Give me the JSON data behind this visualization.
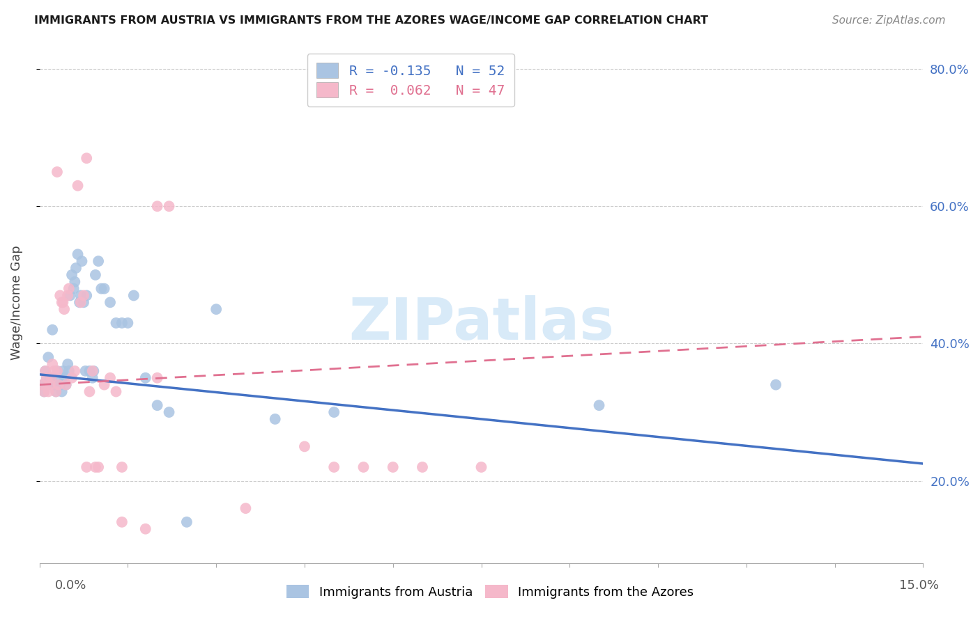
{
  "title": "IMMIGRANTS FROM AUSTRIA VS IMMIGRANTS FROM THE AZORES WAGE/INCOME GAP CORRELATION CHART",
  "source": "Source: ZipAtlas.com",
  "ylabel": "Wage/Income Gap",
  "x_min": 0.0,
  "x_max": 15.0,
  "y_min": 8.0,
  "y_max": 84.0,
  "y_ticks": [
    20.0,
    40.0,
    60.0,
    80.0
  ],
  "austria_color": "#aac4e2",
  "azores_color": "#f5b8ca",
  "austria_line_color": "#4472c4",
  "azores_line_color": "#e07090",
  "watermark_color": "#d8eaf8",
  "watermark_text": "ZIPatlas",
  "legend_austria_label": "R = -0.135   N = 52",
  "legend_azores_label": "R =  0.062   N = 47",
  "austria_trend_x0": 0.0,
  "austria_trend_y0": 35.5,
  "austria_trend_x1": 15.0,
  "austria_trend_y1": 22.5,
  "azores_trend_x0": 0.0,
  "azores_trend_y0": 34.0,
  "azores_trend_x1": 15.0,
  "azores_trend_y1": 41.0,
  "austria_x": [
    0.05,
    0.08,
    0.1,
    0.12,
    0.15,
    0.18,
    0.2,
    0.22,
    0.25,
    0.28,
    0.3,
    0.32,
    0.35,
    0.38,
    0.4,
    0.42,
    0.45,
    0.48,
    0.5,
    0.52,
    0.55,
    0.58,
    0.6,
    0.62,
    0.65,
    0.68,
    0.7,
    0.72,
    0.75,
    0.78,
    0.8,
    0.85,
    0.9,
    0.92,
    0.95,
    1.0,
    1.05,
    1.1,
    1.2,
    1.3,
    1.4,
    1.5,
    1.6,
    1.8,
    2.0,
    2.2,
    2.5,
    3.0,
    4.0,
    5.0,
    9.5,
    12.5
  ],
  "austria_y": [
    34,
    33,
    36,
    35,
    38,
    34,
    35,
    42,
    34,
    33,
    36,
    35,
    34,
    33,
    36,
    35,
    34,
    37,
    36,
    47,
    50,
    48,
    49,
    51,
    53,
    46,
    47,
    52,
    46,
    36,
    47,
    36,
    35,
    36,
    50,
    52,
    48,
    48,
    46,
    43,
    43,
    43,
    47,
    35,
    31,
    30,
    14,
    45,
    29,
    30,
    31,
    34
  ],
  "azores_x": [
    0.05,
    0.08,
    0.1,
    0.12,
    0.15,
    0.18,
    0.2,
    0.22,
    0.25,
    0.28,
    0.3,
    0.32,
    0.35,
    0.38,
    0.4,
    0.42,
    0.45,
    0.48,
    0.5,
    0.55,
    0.6,
    0.65,
    0.7,
    0.75,
    0.8,
    0.85,
    0.9,
    0.95,
    1.0,
    1.1,
    1.2,
    1.3,
    1.4,
    1.8,
    2.0,
    2.2,
    3.5,
    4.5,
    5.0,
    6.0,
    6.5,
    7.5,
    0.3,
    0.8,
    1.4,
    2.0,
    5.5
  ],
  "azores_y": [
    34,
    33,
    36,
    35,
    33,
    34,
    35,
    37,
    36,
    33,
    36,
    34,
    47,
    46,
    46,
    45,
    34,
    47,
    48,
    35,
    36,
    63,
    46,
    47,
    22,
    33,
    36,
    22,
    22,
    34,
    35,
    33,
    22,
    13,
    35,
    60,
    16,
    25,
    22,
    22,
    22,
    22,
    65,
    67,
    14,
    60,
    22
  ]
}
